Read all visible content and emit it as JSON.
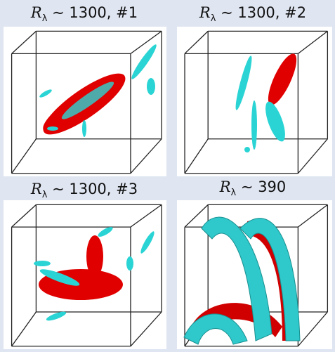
{
  "panels": [
    {
      "symbol": "R",
      "subscript": "λ",
      "text": "∼ 1300, #1"
    },
    {
      "symbol": "R",
      "subscript": "λ",
      "text": "∼ 1300, #2"
    },
    {
      "symbol": "R",
      "subscript": "λ",
      "text": "∼ 1300, #3"
    },
    {
      "symbol": "R",
      "subscript": "λ",
      "text": "∼ 390"
    }
  ]
}
